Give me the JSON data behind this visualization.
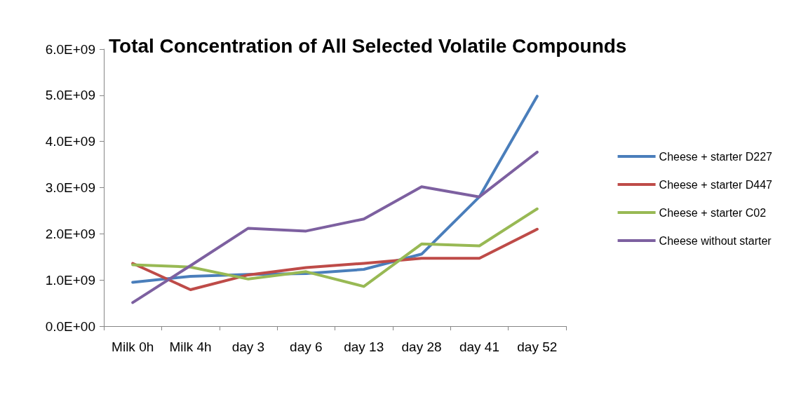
{
  "chart_data": {
    "type": "line",
    "title": "Total Concentration of All Selected Volatile Compounds",
    "categories": [
      "Milk 0h",
      "Milk 4h",
      "day 3",
      "day 6",
      "day 13",
      "day 28",
      "day 41",
      "day 52"
    ],
    "series": [
      {
        "name": "Cheese + starter D227",
        "color": "#4a7ebb",
        "values": [
          950000000.0,
          1080000000.0,
          1120000000.0,
          1140000000.0,
          1230000000.0,
          1560000000.0,
          2800000000.0,
          4980000000.0
        ]
      },
      {
        "name": "Cheese + starter D447",
        "color": "#be4b48",
        "values": [
          1360000000.0,
          790000000.0,
          1110000000.0,
          1270000000.0,
          1360000000.0,
          1470000000.0,
          1470000000.0,
          2100000000.0
        ]
      },
      {
        "name": "Cheese + starter C02",
        "color": "#98b954",
        "values": [
          1330000000.0,
          1280000000.0,
          1020000000.0,
          1180000000.0,
          860000000.0,
          1780000000.0,
          1740000000.0,
          2540000000.0
        ]
      },
      {
        "name": "Cheese without starter",
        "color": "#7d60a0",
        "values": [
          510000000.0,
          1310000000.0,
          2120000000.0,
          2060000000.0,
          2320000000.0,
          3020000000.0,
          2800000000.0,
          3770000000.0
        ]
      }
    ],
    "ylim": [
      0,
      6000000000.0
    ],
    "yticks": [
      {
        "value": 0,
        "label": "0.0E+00"
      },
      {
        "value": 1000000000.0,
        "label": "1.0E+09"
      },
      {
        "value": 2000000000.0,
        "label": "2.0E+09"
      },
      {
        "value": 3000000000.0,
        "label": "3.0E+09"
      },
      {
        "value": 4000000000.0,
        "label": "4.0E+09"
      },
      {
        "value": 5000000000.0,
        "label": "5.0E+09"
      },
      {
        "value": 6000000000.0,
        "label": "6.0E+09"
      }
    ],
    "grid": false,
    "legend": "right",
    "marker": "none",
    "line_style": "solid"
  }
}
